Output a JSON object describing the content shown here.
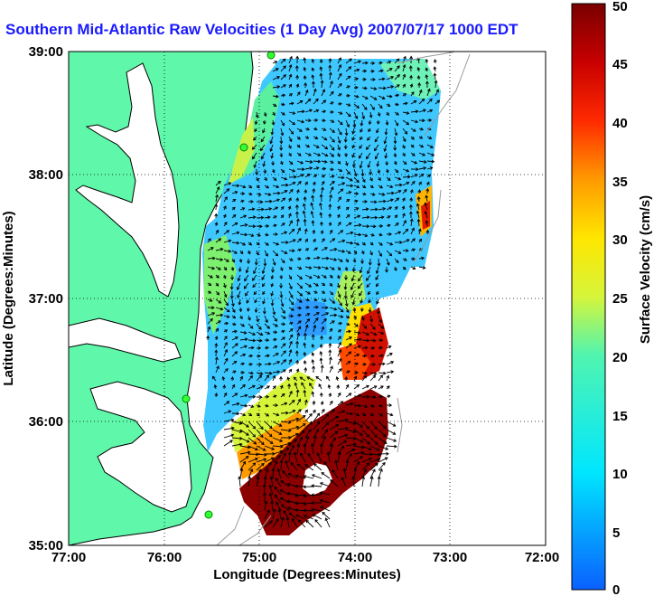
{
  "title": "Southern Mid-Atlantic Raw Velocities (1 Day Avg) 2007/07/17 1000 EDT",
  "map": {
    "xlabel": "Longitude (Degrees:Minutes)",
    "ylabel": "Latitude (Degrees:Minutes)",
    "x_ticks": [
      "77:00",
      "76:00",
      "75:00",
      "74:00",
      "73:00",
      "72:00"
    ],
    "y_ticks": [
      "39:00",
      "38:00",
      "37:00",
      "36:00",
      "35:00"
    ],
    "land_color": "#5ff7a9",
    "grid": true,
    "grid_style": "dotted"
  },
  "colorbar": {
    "label": "Surface Velocity (cm/s)",
    "ticks": [
      "0",
      "5",
      "10",
      "15",
      "20",
      "25",
      "30",
      "35",
      "40",
      "45",
      "50"
    ],
    "range": [
      0,
      50
    ],
    "colormap": "jet"
  }
}
